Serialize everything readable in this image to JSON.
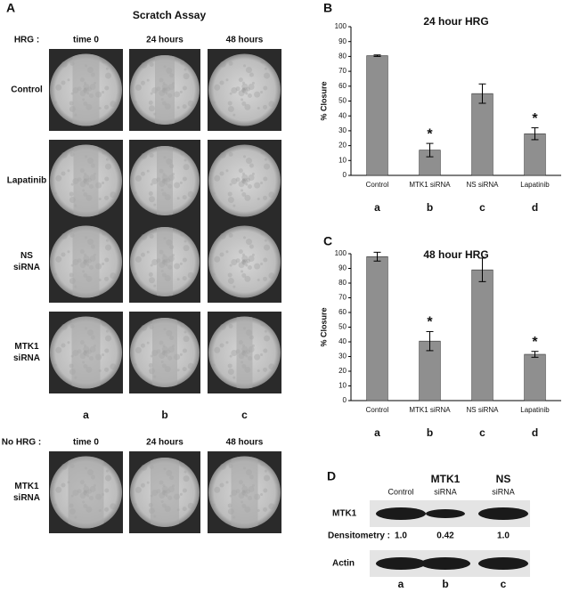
{
  "panel_a": {
    "label": "A",
    "title": "Scratch Assay",
    "hrg_label": "HRG :",
    "columns": [
      "time 0",
      "24 hours",
      "48 hours"
    ],
    "rows": [
      [
        "Control"
      ],
      [
        "Lapatinib"
      ],
      [
        "NS",
        "siRNA"
      ],
      [
        "MTK1",
        "siRNA"
      ]
    ],
    "column_letters": [
      "a",
      "b",
      "c"
    ],
    "no_hrg": {
      "label": "No HRG :",
      "columns": [
        "time 0",
        "24 hours",
        "48 hours"
      ],
      "row": [
        "MTK1",
        "siRNA"
      ]
    }
  },
  "chart_data": [
    {
      "type": "bar",
      "panel_label": "B",
      "title": "24  hour HRG",
      "ylabel": "% Closure",
      "categories": [
        "Control",
        "MTK1 siRNA",
        "NS siRNA",
        "Lapatinib"
      ],
      "values": [
        80.5,
        17,
        55,
        28
      ],
      "errors": [
        0.5,
        4.5,
        6.5,
        4
      ],
      "color": "#8f8f8f",
      "ylim": [
        0,
        100
      ],
      "yticks": [
        0,
        10,
        20,
        30,
        40,
        50,
        60,
        70,
        80,
        90,
        100
      ],
      "annotations": [
        {
          "x": "MTK1 siRNA",
          "text": "*"
        },
        {
          "x": "Lapatinib",
          "text": "*"
        }
      ],
      "group_labels": [
        "a",
        "b",
        "c",
        "d"
      ]
    },
    {
      "type": "bar",
      "panel_label": "C",
      "title": "48 hour HRG",
      "ylabel": "% Closure",
      "categories": [
        "Control",
        "MTK1 siRNA",
        "NS siRNA",
        "Lapatinib"
      ],
      "values": [
        98,
        40.5,
        89,
        31.5
      ],
      "errors": [
        3,
        6.5,
        8,
        2
      ],
      "color": "#8f8f8f",
      "ylim": [
        0,
        100
      ],
      "yticks": [
        0,
        10,
        20,
        30,
        40,
        50,
        60,
        70,
        80,
        90,
        100
      ],
      "annotations": [
        {
          "x": "MTK1 siRNA",
          "text": "*"
        },
        {
          "x": "Lapatinib",
          "text": "*"
        }
      ],
      "group_labels": [
        "a",
        "b",
        "c",
        "d"
      ]
    }
  ],
  "panel_d": {
    "label": "D",
    "columns": [
      [
        "Control"
      ],
      [
        "MTK1",
        "siRNA"
      ],
      [
        "NS",
        "siRNA"
      ]
    ],
    "rows": [
      "MTK1",
      "Actin"
    ],
    "densitometry_label": "Densitometry :",
    "densitometry": [
      "1.0",
      "0.42",
      "1.0"
    ],
    "lane_letters": [
      "a",
      "b",
      "c"
    ]
  }
}
